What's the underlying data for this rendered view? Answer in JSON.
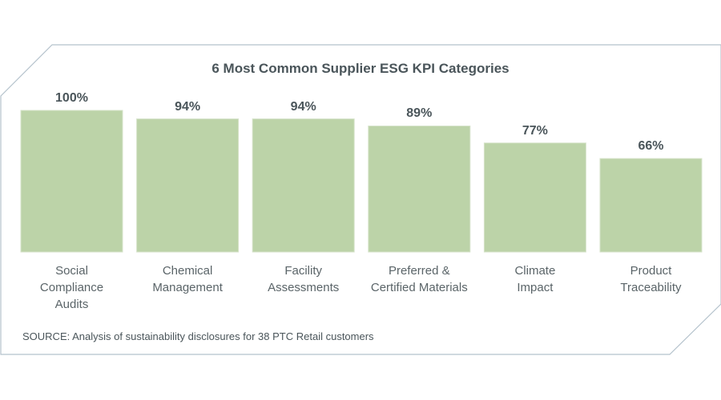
{
  "chart_data": {
    "type": "bar",
    "title": "6 Most Common Supplier ESG KPI Categories",
    "categories": [
      "Social Compliance Audits",
      "Chemical Management",
      "Facility Assessments",
      "Preferred & Certified Materials",
      "Climate Impact",
      "Product Traceability"
    ],
    "category_lines": [
      [
        "Social",
        "Compliance",
        "Audits"
      ],
      [
        "Chemical",
        "Management"
      ],
      [
        "Facility",
        "Assessments"
      ],
      [
        "Preferred &",
        "Certified Materials"
      ],
      [
        "Climate",
        "Impact"
      ],
      [
        "Product",
        "Traceability"
      ]
    ],
    "values": [
      100,
      94,
      94,
      89,
      77,
      66
    ],
    "data_labels": [
      "100%",
      "94%",
      "94%",
      "89%",
      "77%",
      "66%"
    ],
    "ylim": [
      0,
      100
    ],
    "grid": false,
    "bar_color": "#bcd3a8",
    "frame_color": "#b4c2cc",
    "text_color": "#4a555a"
  },
  "source": "SOURCE: Analysis of sustainability disclosures for 38 PTC Retail customers"
}
